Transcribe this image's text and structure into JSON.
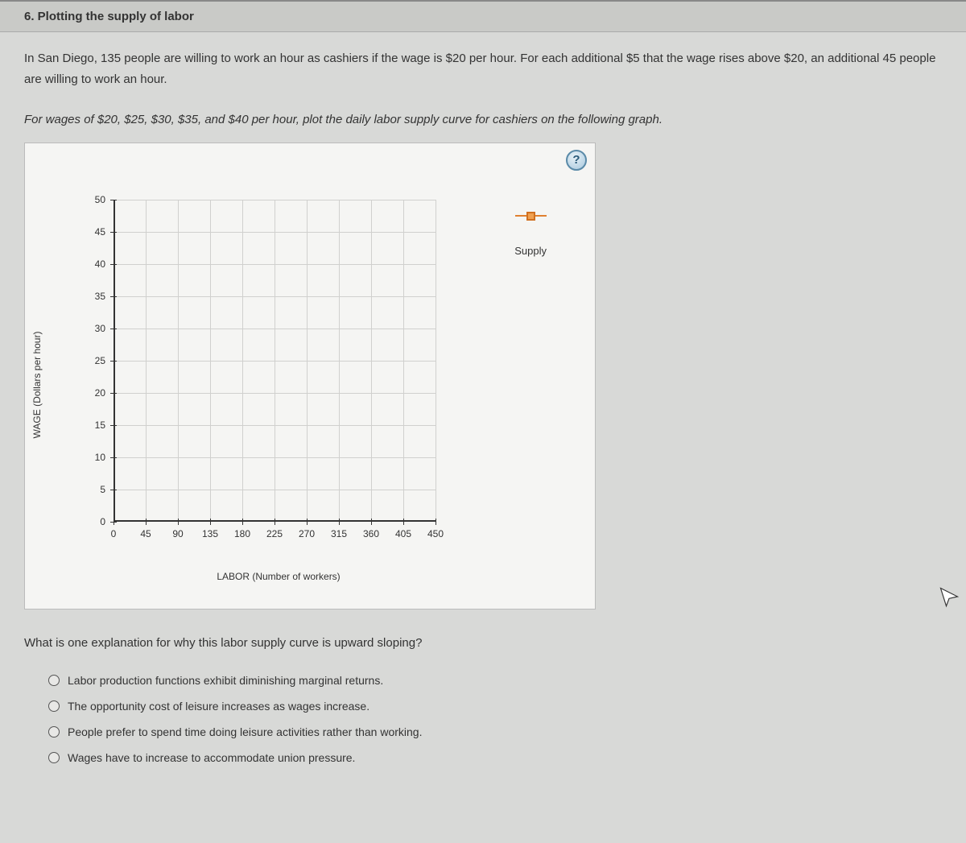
{
  "header": {
    "title": "6. Plotting the supply of labor"
  },
  "intro": "In San Diego, 135 people are willing to work an hour as cashiers if the wage is $20 per hour. For each additional $5 that the wage rises above $20, an additional 45 people are willing to work an hour.",
  "instruction": "For wages of $20, $25, $30, $35, and $40 per hour, plot the daily labor supply curve for cashiers on the following graph.",
  "help_label": "?",
  "chart": {
    "y_label": "WAGE (Dollars per hour)",
    "x_label": "LABOR (Number of workers)",
    "x_ticks": [
      "0",
      "45",
      "90",
      "135",
      "180",
      "225",
      "270",
      "315",
      "360",
      "405",
      "450"
    ],
    "y_ticks": [
      "0",
      "5",
      "10",
      "15",
      "20",
      "25",
      "30",
      "35",
      "40",
      "45",
      "50"
    ],
    "xlim": [
      0,
      450
    ],
    "ylim": [
      0,
      50
    ],
    "grid_color": "#d0d0ce",
    "axis_color": "#333333",
    "bg_color": "#f5f5f3",
    "tick_fontsize": 12,
    "label_fontsize": 12
  },
  "legend": {
    "series_name": "Supply",
    "marker_fill": "#f0a050",
    "marker_border": "#d07020",
    "line_color": "#e08030"
  },
  "question": {
    "prompt": "What is one explanation for why this labor supply curve is upward sloping?",
    "options": [
      "Labor production functions exhibit diminishing marginal returns.",
      "The opportunity cost of leisure increases as wages increase.",
      "People prefer to spend time doing leisure activities rather than working.",
      "Wages have to increase to accommodate union pressure."
    ]
  }
}
